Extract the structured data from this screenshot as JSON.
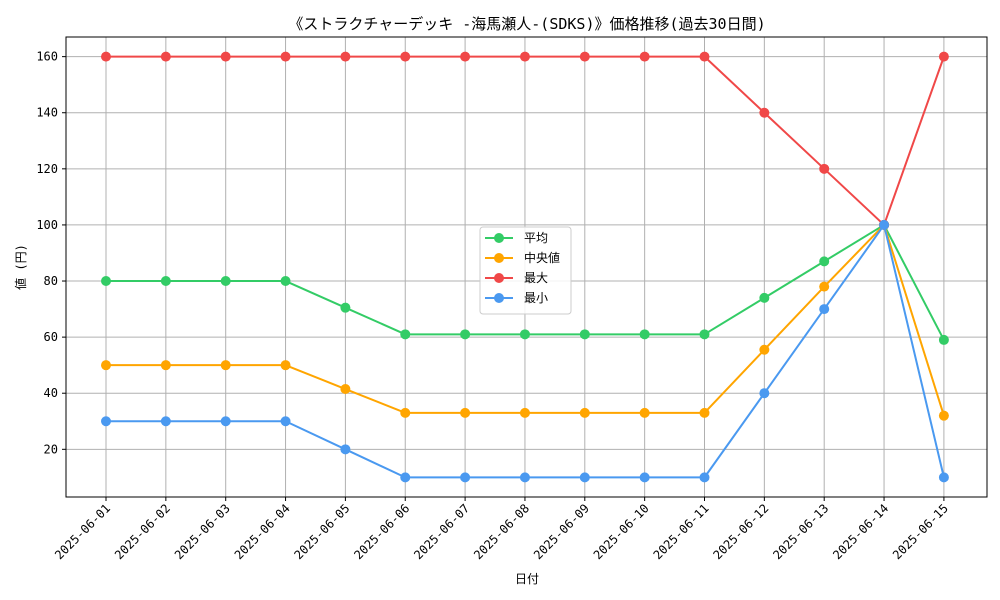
{
  "chart_data": {
    "type": "line",
    "title": "《ストラクチャーデッキ -海馬瀬人-(SDKS)》価格推移(過去30日間)",
    "xlabel": "日付",
    "ylabel": "値 (円)",
    "x": [
      "2025-06-01",
      "2025-06-02",
      "2025-06-03",
      "2025-06-04",
      "2025-06-05",
      "2025-06-06",
      "2025-06-07",
      "2025-06-08",
      "2025-06-09",
      "2025-06-10",
      "2025-06-11",
      "2025-06-12",
      "2025-06-13",
      "2025-06-14",
      "2025-06-15"
    ],
    "yticks": [
      20,
      40,
      60,
      80,
      100,
      120,
      140,
      160
    ],
    "ylim": [
      3,
      167
    ],
    "grid": true,
    "legend": "center",
    "series": [
      {
        "name": "平均",
        "color": "#33cc66",
        "values": [
          80,
          80,
          80,
          80,
          70.5,
          61,
          61,
          61,
          61,
          61,
          61,
          74,
          87,
          100,
          59
        ]
      },
      {
        "name": "中央値",
        "color": "#ffa500",
        "values": [
          50,
          50,
          50,
          50,
          41.5,
          33,
          33,
          33,
          33,
          33,
          33,
          55.5,
          78,
          100,
          32
        ]
      },
      {
        "name": "最大",
        "color": "#f04848",
        "values": [
          160,
          160,
          160,
          160,
          160,
          160,
          160,
          160,
          160,
          160,
          160,
          140,
          120,
          100,
          160
        ]
      },
      {
        "name": "最小",
        "color": "#4a99f0",
        "values": [
          30,
          30,
          30,
          30,
          20,
          10,
          10,
          10,
          10,
          10,
          10,
          40,
          70,
          100,
          10
        ]
      }
    ]
  }
}
